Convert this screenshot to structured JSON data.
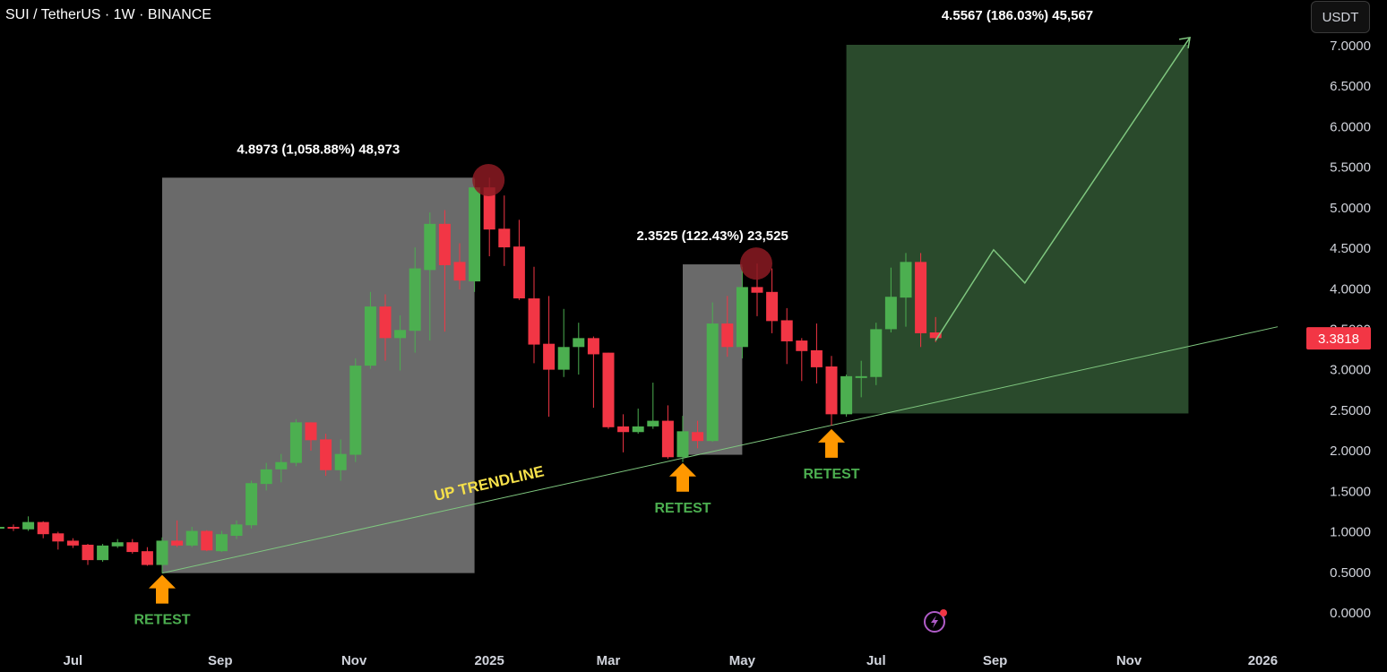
{
  "header": {
    "symbol_title": "SUI / TetherUS · 1W · BINANCE",
    "currency_button": "USDT"
  },
  "colors": {
    "up": "#4caf50",
    "down": "#f23645",
    "range_box": "#6a6a6a",
    "target_box": "#2a4a2c",
    "trendline": "#7fc77f",
    "arrow": "#ff9800",
    "retest_text": "#4caf50",
    "trend_label": "#f5e04a",
    "peak_circle": "#8b1a22"
  },
  "chart_data": {
    "type": "candlestick",
    "title": "SUI / TetherUS · 1W · BINANCE",
    "interval": "1W",
    "ylim": [
      0,
      7
    ],
    "y_ticks": [
      "7.0000",
      "6.5000",
      "6.0000",
      "5.5000",
      "5.0000",
      "4.5000",
      "4.0000",
      "3.5000",
      "3.0000",
      "2.5000",
      "2.0000",
      "1.5000",
      "1.0000",
      "0.5000",
      "0.0000"
    ],
    "x_ticks": [
      {
        "label": "Jul",
        "week": -6
      },
      {
        "label": "Sep",
        "week": 3.9
      },
      {
        "label": "Nov",
        "week": 12.9
      },
      {
        "label": "2025",
        "week": 22
      },
      {
        "label": "Mar",
        "week": 30
      },
      {
        "label": "May",
        "week": 39
      },
      {
        "label": "Jul",
        "week": 48
      },
      {
        "label": "Sep",
        "week": 56
      },
      {
        "label": "Nov",
        "week": 65
      },
      {
        "label": "2026",
        "week": 74
      }
    ],
    "first_week_index": -11,
    "candles_ohlc": [
      [
        1.03,
        1.06,
        1.02,
        1.05
      ],
      [
        1.05,
        1.08,
        1.0,
        1.03
      ],
      [
        1.02,
        1.18,
        1.0,
        1.11
      ],
      [
        1.11,
        1.12,
        0.91,
        0.96
      ],
      [
        0.97,
        0.99,
        0.77,
        0.87
      ],
      [
        0.88,
        0.91,
        0.79,
        0.82
      ],
      [
        0.83,
        0.84,
        0.58,
        0.64
      ],
      [
        0.64,
        0.84,
        0.62,
        0.82
      ],
      [
        0.81,
        0.9,
        0.79,
        0.86
      ],
      [
        0.86,
        0.9,
        0.72,
        0.74
      ],
      [
        0.75,
        0.8,
        0.57,
        0.58
      ],
      [
        0.58,
        0.92,
        0.48,
        0.88
      ],
      [
        0.88,
        1.13,
        0.8,
        0.82
      ],
      [
        0.82,
        1.05,
        0.8,
        1.0
      ],
      [
        1.0,
        1.01,
        0.75,
        0.76
      ],
      [
        0.75,
        1.0,
        0.74,
        0.96
      ],
      [
        0.94,
        1.13,
        0.9,
        1.08
      ],
      [
        1.07,
        1.62,
        1.03,
        1.59
      ],
      [
        1.58,
        1.84,
        1.5,
        1.76
      ],
      [
        1.76,
        1.95,
        1.6,
        1.85
      ],
      [
        1.84,
        2.38,
        1.8,
        2.34
      ],
      [
        2.34,
        2.34,
        1.99,
        2.12
      ],
      [
        2.13,
        2.2,
        1.68,
        1.75
      ],
      [
        1.75,
        2.13,
        1.62,
        1.95
      ],
      [
        1.94,
        3.13,
        1.85,
        3.04
      ],
      [
        3.04,
        3.95,
        3.0,
        3.77
      ],
      [
        3.77,
        3.92,
        3.1,
        3.38
      ],
      [
        3.38,
        3.66,
        2.98,
        3.48
      ],
      [
        3.47,
        4.5,
        3.2,
        4.24
      ],
      [
        4.22,
        4.93,
        3.35,
        4.79
      ],
      [
        4.79,
        4.96,
        3.46,
        4.28
      ],
      [
        4.32,
        4.55,
        3.98,
        4.09
      ],
      [
        4.08,
        5.34,
        3.95,
        5.24
      ],
      [
        5.24,
        5.36,
        4.39,
        4.72
      ],
      [
        4.73,
        5.14,
        4.27,
        4.5
      ],
      [
        4.51,
        4.84,
        3.85,
        3.87
      ],
      [
        3.87,
        4.26,
        3.07,
        3.3
      ],
      [
        3.31,
        3.9,
        2.41,
        2.99
      ],
      [
        2.99,
        3.74,
        2.9,
        3.27
      ],
      [
        3.27,
        3.57,
        2.93,
        3.38
      ],
      [
        3.38,
        3.4,
        2.52,
        3.18
      ],
      [
        3.2,
        3.2,
        2.26,
        2.28
      ],
      [
        2.29,
        2.44,
        1.97,
        2.22
      ],
      [
        2.22,
        2.51,
        2.2,
        2.29
      ],
      [
        2.29,
        2.83,
        2.26,
        2.36
      ],
      [
        2.36,
        2.55,
        1.89,
        1.91
      ],
      [
        1.91,
        2.42,
        1.85,
        2.23
      ],
      [
        2.22,
        2.36,
        2.02,
        2.11
      ],
      [
        2.11,
        3.82,
        2.1,
        3.56
      ],
      [
        3.56,
        3.9,
        3.15,
        3.27
      ],
      [
        3.27,
        4.26,
        3.13,
        4.01
      ],
      [
        4.01,
        4.3,
        3.65,
        3.94
      ],
      [
        3.95,
        4.24,
        3.44,
        3.59
      ],
      [
        3.6,
        3.75,
        3.06,
        3.34
      ],
      [
        3.35,
        3.38,
        2.85,
        3.22
      ],
      [
        3.23,
        3.56,
        2.82,
        3.02
      ],
      [
        3.03,
        3.16,
        2.3,
        2.44
      ],
      [
        2.44,
        2.93,
        2.41,
        2.91
      ],
      [
        2.9,
        3.1,
        2.65,
        2.91
      ],
      [
        2.9,
        3.57,
        2.8,
        3.49
      ],
      [
        3.49,
        4.25,
        3.45,
        3.89
      ],
      [
        3.88,
        4.43,
        3.52,
        4.32
      ],
      [
        4.32,
        4.43,
        3.27,
        3.44
      ],
      [
        3.45,
        3.64,
        3.33,
        3.38
      ]
    ],
    "last_price": "3.3818",
    "annotations": {
      "ranges": [
        {
          "from_week": 0,
          "to_week": 21,
          "low": 0.48,
          "high": 5.36,
          "label": "4.8973 (1,058.88%) 48,973",
          "kind": "gray"
        },
        {
          "from_week": 35,
          "to_week": 39,
          "low": 1.94,
          "high": 4.29,
          "label": "2.3525 (122.43%) 23,525",
          "kind": "gray"
        },
        {
          "from_week": 46,
          "to_week": 69,
          "low": 2.45,
          "high": 7.0,
          "label": "4.5567 (186.03%) 45,567",
          "kind": "green"
        }
      ],
      "trendline": {
        "from": [
          0,
          0.48
        ],
        "to": [
          75,
          3.52
        ],
        "label": "UP TRENDLINE"
      },
      "projection_path": [
        [
          52,
          3.35
        ],
        [
          55.9,
          4.47
        ],
        [
          58,
          4.06
        ],
        [
          69.1,
          7.09
        ]
      ],
      "peak_circles": [
        [
          22,
          5.33
        ],
        [
          40,
          4.3
        ]
      ],
      "retests": [
        {
          "week": 0,
          "price": 0.48,
          "label": "RETEST"
        },
        {
          "week": 35,
          "price": 1.86,
          "label": "RETEST"
        },
        {
          "week": 45,
          "price": 2.28,
          "label": "RETEST"
        }
      ]
    }
  }
}
